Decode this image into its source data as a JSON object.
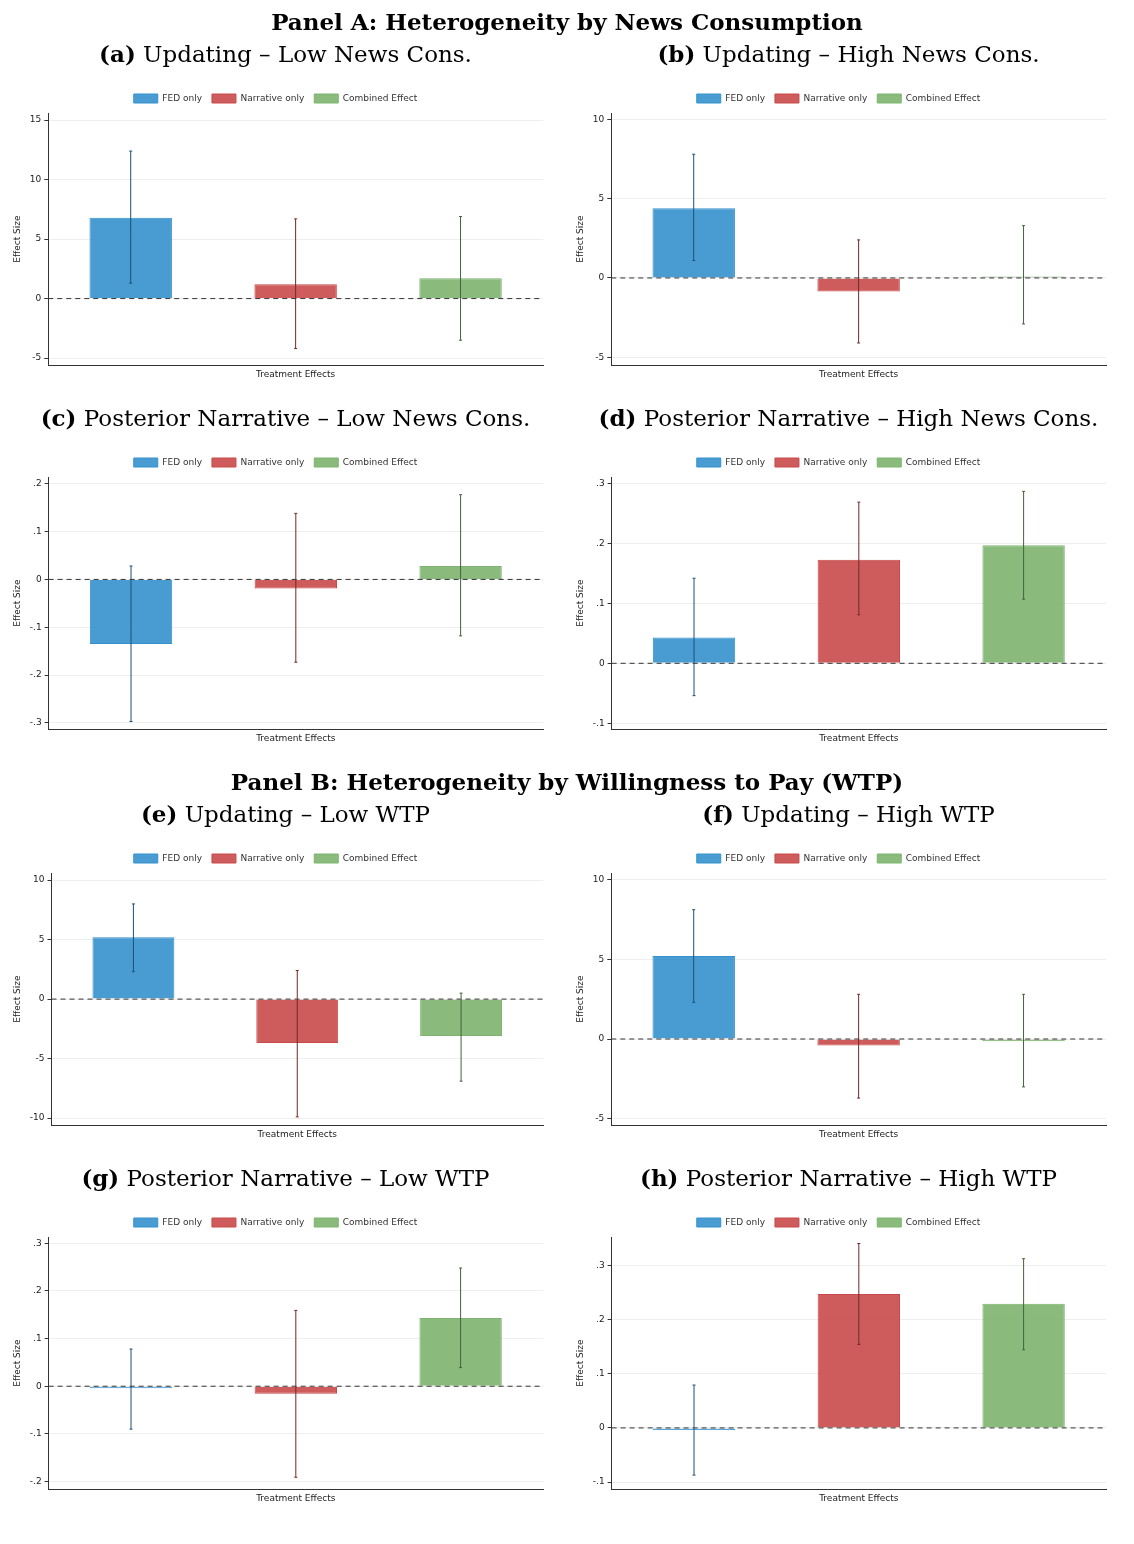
{
  "chart_data": [
    {
      "type": "bar",
      "subtitle": "Panel A: Heterogeneity by News Consumption",
      "title": "(a) Updating – Low News Cons.",
      "xlabel": "Treatment Effects",
      "ylabel": "Effect Size",
      "categories": [
        null,
        null,
        null
      ],
      "ylim": [
        -5.6,
        15.6
      ],
      "yticks": [
        -5,
        0,
        5,
        10,
        15
      ],
      "grid": "y",
      "legend": "top",
      "tick_labels": "y",
      "ref_lines": [
        {
          "axis": "y",
          "value": 0,
          "color": "#333333",
          "line_style": "dashed"
        }
      ],
      "series": [
        {
          "name": "FED only",
          "color": "#3591cd",
          "values": [
            6.8,
            null,
            null
          ],
          "errors": [
            [
              1.3,
              12.4
            ],
            null,
            null
          ]
        },
        {
          "name": "Narrative only",
          "color": "#c94a4a",
          "values": [
            null,
            1.2,
            null
          ],
          "errors": [
            null,
            [
              -4.2,
              6.7
            ],
            null
          ]
        },
        {
          "name": "Combined Effect",
          "color": "#7db46f",
          "values": [
            null,
            null,
            1.7
          ],
          "errors": [
            null,
            null,
            [
              -3.5,
              6.9
            ]
          ]
        }
      ]
    },
    {
      "type": "bar",
      "title": "(b) Updating – High News Cons.",
      "xlabel": "Treatment Effects",
      "ylabel": "Effect Size",
      "categories": [
        null,
        null,
        null
      ],
      "ylim": [
        -5.5,
        10.4
      ],
      "yticks": [
        -5,
        0,
        5,
        10
      ],
      "grid": "y",
      "legend": "top",
      "tick_labels": "y",
      "ref_lines": [
        {
          "axis": "y",
          "value": 0,
          "color": "#333333",
          "line_style": "dashed"
        }
      ],
      "series": [
        {
          "name": "FED only",
          "color": "#3591cd",
          "values": [
            4.4,
            null,
            null
          ],
          "errors": [
            [
              1.1,
              7.8
            ],
            null,
            null
          ]
        },
        {
          "name": "Narrative only",
          "color": "#c94a4a",
          "values": [
            null,
            -0.85,
            null
          ],
          "errors": [
            null,
            [
              -4.1,
              2.4
            ],
            null
          ]
        },
        {
          "name": "Combined Effect",
          "color": "#7db46f",
          "values": [
            null,
            null,
            0.1
          ],
          "errors": [
            null,
            null,
            [
              -2.9,
              3.3
            ]
          ]
        }
      ]
    },
    {
      "type": "bar",
      "title": "(c) Posterior Narrative – Low News Cons.",
      "xlabel": "Treatment Effects",
      "ylabel": "Effect Size",
      "categories": [
        null,
        null,
        null
      ],
      "ylim": [
        -0.313,
        0.214
      ],
      "yticks": [
        {
          "value": -0.3,
          "label": "-.3"
        },
        {
          "value": -0.2,
          "label": "-.2"
        },
        {
          "value": -0.1,
          "label": "-.1"
        },
        0,
        {
          "value": 0.1,
          "label": ".1"
        },
        {
          "value": 0.2,
          "label": ".2"
        }
      ],
      "grid": "y",
      "legend": "top",
      "tick_labels": "y",
      "ref_lines": [
        {
          "axis": "y",
          "value": 0,
          "color": "#333333",
          "line_style": "dashed"
        }
      ],
      "series": [
        {
          "name": "FED only",
          "color": "#3591cd",
          "values": [
            -0.135,
            null,
            null
          ],
          "errors": [
            [
              -0.297,
              0.028
            ],
            null,
            null
          ]
        },
        {
          "name": "Narrative only",
          "color": "#c94a4a",
          "values": [
            null,
            -0.019,
            null
          ],
          "errors": [
            null,
            [
              -0.173,
              0.138
            ],
            null
          ]
        },
        {
          "name": "Combined Effect",
          "color": "#7db46f",
          "values": [
            null,
            null,
            0.028
          ],
          "errors": [
            null,
            null,
            [
              -0.118,
              0.177
            ]
          ]
        }
      ]
    },
    {
      "type": "bar",
      "title": "(d) Posterior Narrative – High News Cons.",
      "xlabel": "Treatment Effects",
      "ylabel": "Effect Size",
      "categories": [
        null,
        null,
        null
      ],
      "ylim": [
        -0.11,
        0.311
      ],
      "yticks": [
        {
          "value": -0.1,
          "label": "-.1"
        },
        0,
        {
          "value": 0.1,
          "label": ".1"
        },
        {
          "value": 0.2,
          "label": ".2"
        },
        {
          "value": 0.3,
          "label": ".3"
        }
      ],
      "grid": "y",
      "legend": "top",
      "tick_labels": "y",
      "ref_lines": [
        {
          "axis": "y",
          "value": 0,
          "color": "#333333",
          "line_style": "dashed"
        }
      ],
      "series": [
        {
          "name": "FED only",
          "color": "#3591cd",
          "values": [
            0.043,
            null,
            null
          ],
          "errors": [
            [
              -0.054,
              0.142
            ],
            null,
            null
          ]
        },
        {
          "name": "Narrative only",
          "color": "#c94a4a",
          "values": [
            null,
            0.173,
            null
          ],
          "errors": [
            null,
            [
              0.081,
              0.269
            ],
            null
          ]
        },
        {
          "name": "Combined Effect",
          "color": "#7db46f",
          "values": [
            null,
            null,
            0.197
          ],
          "errors": [
            null,
            null,
            [
              0.107,
              0.287
            ]
          ]
        }
      ]
    },
    {
      "type": "bar",
      "subtitle": "Panel B: Heterogeneity by Willingness to Pay (WTP)",
      "title": "(e) Updating – Low WTP",
      "xlabel": "Treatment Effects",
      "ylabel": "Effect Size",
      "categories": [
        null,
        null,
        null
      ],
      "ylim": [
        -10.6,
        10.6
      ],
      "yticks": [
        -10,
        -5,
        0,
        5,
        10
      ],
      "grid": "y",
      "legend": "top",
      "tick_labels": "y",
      "ref_lines": [
        {
          "axis": "y",
          "value": 0,
          "color": "#333333",
          "line_style": "dashed"
        }
      ],
      "series": [
        {
          "name": "FED only",
          "color": "#3591cd",
          "values": [
            5.2,
            null,
            null
          ],
          "errors": [
            [
              2.3,
              8.0
            ],
            null,
            null
          ]
        },
        {
          "name": "Narrative only",
          "color": "#c94a4a",
          "values": [
            null,
            -3.7,
            null
          ],
          "errors": [
            null,
            [
              -9.9,
              2.4
            ],
            null
          ]
        },
        {
          "name": "Combined Effect",
          "color": "#7db46f",
          "values": [
            null,
            null,
            -3.1
          ],
          "errors": [
            null,
            null,
            [
              -6.9,
              0.5
            ]
          ]
        }
      ]
    },
    {
      "type": "bar",
      "title": "(f) Updating – High WTP",
      "xlabel": "Treatment Effects",
      "ylabel": "Effect Size",
      "categories": [
        null,
        null,
        null
      ],
      "ylim": [
        -5.4,
        10.4
      ],
      "yticks": [
        -5,
        0,
        5,
        10
      ],
      "grid": "y",
      "legend": "top",
      "tick_labels": "y",
      "ref_lines": [
        {
          "axis": "y",
          "value": 0,
          "color": "#333333",
          "line_style": "dashed"
        }
      ],
      "series": [
        {
          "name": "FED only",
          "color": "#3591cd",
          "values": [
            5.2,
            null,
            null
          ],
          "errors": [
            [
              2.3,
              8.1
            ],
            null,
            null
          ]
        },
        {
          "name": "Narrative only",
          "color": "#c94a4a",
          "values": [
            null,
            -0.4,
            null
          ],
          "errors": [
            null,
            [
              -3.7,
              2.8
            ],
            null
          ]
        },
        {
          "name": "Combined Effect",
          "color": "#7db46f",
          "values": [
            null,
            null,
            -0.14
          ],
          "errors": [
            null,
            null,
            [
              -3.0,
              2.8
            ]
          ]
        }
      ]
    },
    {
      "type": "bar",
      "title": "(g) Posterior Narrative – Low WTP",
      "xlabel": "Treatment Effects",
      "ylabel": "Effect Size",
      "categories": [
        null,
        null,
        null
      ],
      "ylim": [
        -0.216,
        0.313
      ],
      "yticks": [
        {
          "value": -0.2,
          "label": "-.2"
        },
        {
          "value": -0.1,
          "label": "-.1"
        },
        0,
        {
          "value": 0.1,
          "label": ".1"
        },
        {
          "value": 0.2,
          "label": ".2"
        },
        {
          "value": 0.3,
          "label": ".3"
        }
      ],
      "grid": "y",
      "legend": "top",
      "tick_labels": "y",
      "ref_lines": [
        {
          "axis": "y",
          "value": 0,
          "color": "#333333",
          "line_style": "dashed"
        }
      ],
      "series": [
        {
          "name": "FED only",
          "color": "#3591cd",
          "values": [
            -0.004,
            null,
            null
          ],
          "errors": [
            [
              -0.09,
              0.078
            ],
            null,
            null
          ]
        },
        {
          "name": "Narrative only",
          "color": "#c94a4a",
          "values": [
            null,
            -0.016,
            null
          ],
          "errors": [
            null,
            [
              -0.191,
              0.159
            ],
            null
          ]
        },
        {
          "name": "Combined Effect",
          "color": "#7db46f",
          "values": [
            null,
            null,
            0.143
          ],
          "errors": [
            null,
            null,
            [
              0.039,
              0.248
            ]
          ]
        }
      ]
    },
    {
      "type": "bar",
      "title": "(h) Posterior Narrative – High WTP",
      "xlabel": "Treatment Effects",
      "ylabel": "Effect Size",
      "categories": [
        null,
        null,
        null
      ],
      "ylim": [
        -0.113,
        0.352
      ],
      "yticks": [
        {
          "value": -0.1,
          "label": "-.1"
        },
        0,
        {
          "value": 0.1,
          "label": ".1"
        },
        {
          "value": 0.2,
          "label": ".2"
        },
        {
          "value": 0.3,
          "label": ".3"
        }
      ],
      "grid": "y",
      "legend": "top",
      "tick_labels": "y",
      "ref_lines": [
        {
          "axis": "y",
          "value": 0,
          "color": "#333333",
          "line_style": "dashed"
        }
      ],
      "series": [
        {
          "name": "FED only",
          "color": "#3591cd",
          "values": [
            -0.004,
            null,
            null
          ],
          "errors": [
            [
              -0.087,
              0.079
            ],
            null,
            null
          ]
        },
        {
          "name": "Narrative only",
          "color": "#c94a4a",
          "values": [
            null,
            0.247,
            null
          ],
          "errors": [
            null,
            [
              0.154,
              0.34
            ],
            null
          ]
        },
        {
          "name": "Combined Effect",
          "color": "#7db46f",
          "values": [
            null,
            null,
            0.229
          ],
          "errors": [
            null,
            null,
            [
              0.144,
              0.312
            ]
          ]
        }
      ]
    }
  ]
}
